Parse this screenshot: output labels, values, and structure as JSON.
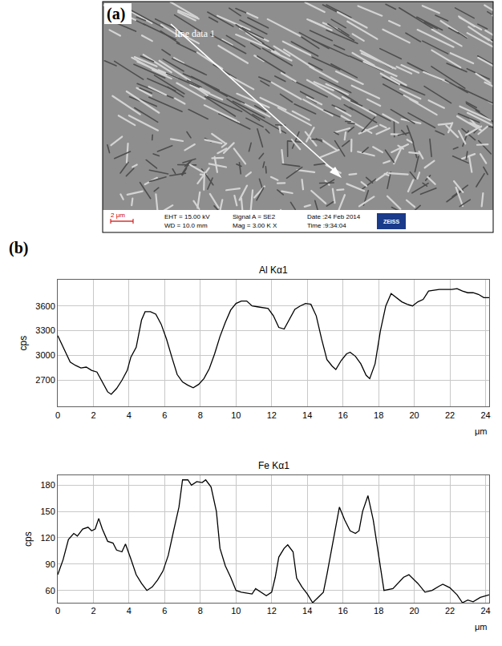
{
  "figure": {
    "panels": [
      {
        "label": "(a)",
        "image": {
          "line_label": "line data 1",
          "scale_bar": "2 μm",
          "info": [
            [
              "EHT = 15.00 kV",
              "WD = 10.0 mm"
            ],
            [
              "Signal A = SE2",
              "Mag = 3.00 K X"
            ],
            [
              "Date :24 Feb 2014",
              "Time :9:34:04"
            ]
          ],
          "logo": "ZEISS"
        }
      },
      {
        "label": "(b)"
      }
    ]
  },
  "chart_data": [
    {
      "type": "line",
      "title": "Al Kα1",
      "x_label": "μm",
      "y_label": "cps",
      "color": "#000000",
      "line_style": "solid",
      "grid": true,
      "x": [
        0,
        0.3,
        0.7,
        1.0,
        1.3,
        1.6,
        1.9,
        2.2,
        2.5,
        2.8,
        3.0,
        3.3,
        3.6,
        3.9,
        4.1,
        4.4,
        4.7,
        4.9,
        5.2,
        5.5,
        5.8,
        6.1,
        6.4,
        6.7,
        7.0,
        7.3,
        7.6,
        7.9,
        8.2,
        8.5,
        8.8,
        9.1,
        9.4,
        9.7,
        10.0,
        10.3,
        10.6,
        10.9,
        11.2,
        11.5,
        11.8,
        12.1,
        12.4,
        12.7,
        13.0,
        13.3,
        13.6,
        13.9,
        14.2,
        14.5,
        14.8,
        15.1,
        15.4,
        15.6,
        15.9,
        16.2,
        16.4,
        16.7,
        17.0,
        17.3,
        17.5,
        17.8,
        18.1,
        18.4,
        18.7,
        19.0,
        19.3,
        19.6,
        19.9,
        20.2,
        20.5,
        20.8,
        21.1,
        21.4,
        21.8,
        22.1,
        22.4,
        22.7,
        23.0,
        23.3,
        23.6,
        23.9,
        24.2
      ],
      "values": [
        3240,
        3100,
        2920,
        2880,
        2850,
        2860,
        2820,
        2800,
        2680,
        2560,
        2530,
        2600,
        2700,
        2820,
        2980,
        3100,
        3430,
        3530,
        3530,
        3500,
        3380,
        3200,
        2980,
        2770,
        2680,
        2640,
        2610,
        2650,
        2720,
        2840,
        3020,
        3230,
        3400,
        3550,
        3630,
        3660,
        3660,
        3600,
        3590,
        3580,
        3570,
        3480,
        3340,
        3320,
        3440,
        3560,
        3600,
        3630,
        3620,
        3480,
        3200,
        2950,
        2870,
        2830,
        2940,
        3020,
        3040,
        2990,
        2900,
        2760,
        2720,
        2900,
        3300,
        3600,
        3750,
        3700,
        3650,
        3620,
        3600,
        3650,
        3680,
        3780,
        3790,
        3800,
        3800,
        3800,
        3810,
        3780,
        3760,
        3760,
        3740,
        3700,
        3700
      ],
      "xlim": [
        0,
        24.2
      ],
      "ylim": [
        2380,
        3920
      ],
      "xticks": [
        0,
        2,
        4,
        6,
        8,
        10,
        12,
        14,
        16,
        18,
        20,
        22,
        24
      ],
      "yticks": [
        2700,
        3000,
        3300,
        3600
      ]
    },
    {
      "type": "line",
      "title": "Fe Kα1",
      "x_label": "μm",
      "y_label": "cps",
      "color": "#000000",
      "line_style": "solid",
      "grid": true,
      "x": [
        0,
        0.3,
        0.6,
        0.9,
        1.1,
        1.4,
        1.7,
        1.9,
        2.1,
        2.3,
        2.5,
        2.8,
        3.1,
        3.3,
        3.6,
        3.8,
        4.1,
        4.4,
        4.7,
        5.0,
        5.3,
        5.6,
        5.9,
        6.2,
        6.5,
        6.8,
        7.0,
        7.3,
        7.5,
        7.8,
        8.1,
        8.3,
        8.6,
        8.9,
        9.1,
        9.4,
        9.7,
        10.0,
        10.3,
        10.6,
        10.9,
        11.1,
        11.4,
        11.7,
        12.0,
        12.2,
        12.4,
        12.7,
        12.9,
        13.2,
        13.4,
        13.7,
        14.0,
        14.3,
        14.6,
        14.9,
        15.1,
        15.4,
        15.8,
        16.1,
        16.4,
        16.7,
        16.9,
        17.1,
        17.4,
        17.7,
        18.0,
        18.3,
        18.8,
        19.4,
        19.7,
        20.2,
        20.6,
        21.0,
        21.4,
        21.6,
        22.0,
        22.4,
        22.7,
        23.0,
        23.3,
        23.7,
        24.2
      ],
      "values": [
        78,
        95,
        118,
        125,
        122,
        130,
        132,
        128,
        130,
        142,
        130,
        116,
        114,
        106,
        104,
        113,
        96,
        78,
        68,
        60,
        64,
        72,
        82,
        100,
        128,
        155,
        186,
        186,
        180,
        184,
        183,
        186,
        178,
        150,
        108,
        88,
        75,
        60,
        58,
        57,
        56,
        62,
        58,
        54,
        58,
        75,
        98,
        108,
        112,
        104,
        74,
        64,
        56,
        46,
        52,
        58,
        78,
        110,
        155,
        140,
        128,
        125,
        128,
        150,
        168,
        140,
        100,
        60,
        62,
        75,
        78,
        68,
        58,
        60,
        65,
        67,
        63,
        55,
        46,
        49,
        47,
        52,
        55
      ],
      "xlim": [
        0,
        24.2
      ],
      "ylim": [
        46,
        191
      ],
      "xticks": [
        0,
        2,
        4,
        6,
        8,
        10,
        12,
        14,
        16,
        18,
        20,
        22,
        24
      ],
      "yticks": [
        60,
        90,
        120,
        150,
        180
      ]
    }
  ]
}
